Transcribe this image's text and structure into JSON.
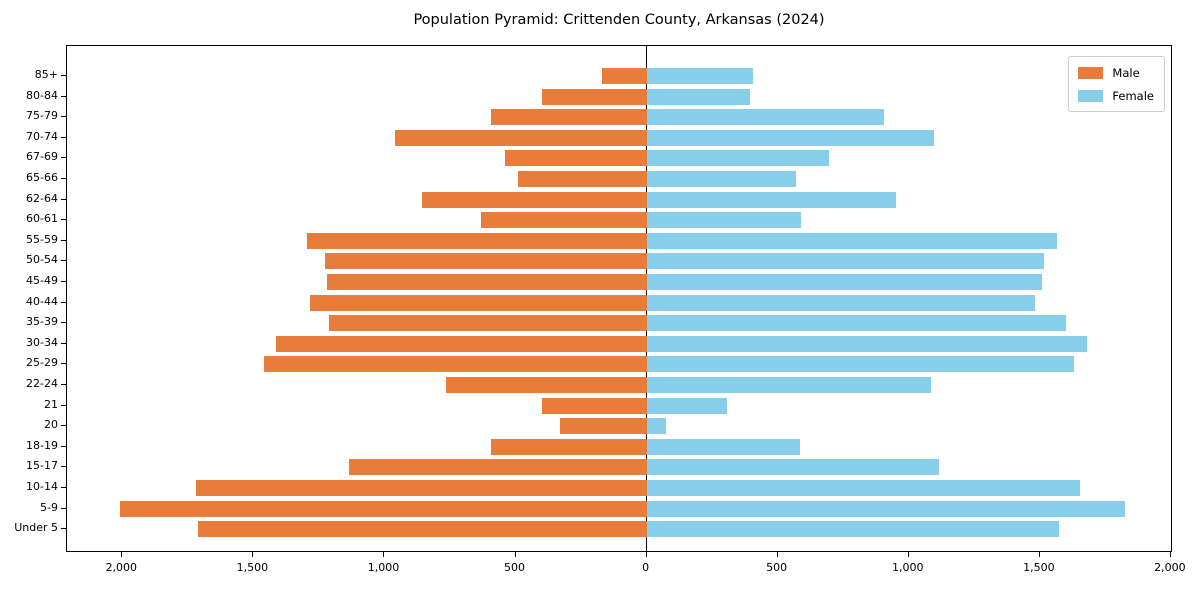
{
  "chart_data": {
    "type": "bar",
    "subtype": "population-pyramid",
    "title": "Population Pyramid: Crittenden County, Arkansas (2024)",
    "categories": [
      "85+",
      "80-84",
      "75-79",
      "70-74",
      "67-69",
      "65-66",
      "62-64",
      "60-61",
      "55-59",
      "50-54",
      "45-49",
      "40-44",
      "35-39",
      "30-34",
      "25-29",
      "22-24",
      "21",
      "20",
      "18-19",
      "15-17",
      "10-14",
      "5-9",
      "Under 5"
    ],
    "series": [
      {
        "name": "Male",
        "side": "left",
        "color": "#E87D3B",
        "values": [
          170,
          400,
          595,
          960,
          540,
          490,
          855,
          630,
          1295,
          1225,
          1220,
          1285,
          1210,
          1415,
          1460,
          765,
          400,
          330,
          595,
          1135,
          1720,
          2010,
          1710
        ]
      },
      {
        "name": "Female",
        "side": "right",
        "color": "#87CEEB",
        "values": [
          405,
          395,
          905,
          1095,
          695,
          570,
          950,
          590,
          1565,
          1515,
          1510,
          1480,
          1600,
          1680,
          1630,
          1085,
          305,
          75,
          585,
          1115,
          1655,
          1825,
          1575
        ]
      }
    ],
    "xlim": [
      -2211,
      2008
    ],
    "x_tick_values": [
      -2000,
      -1500,
      -1000,
      -500,
      0,
      500,
      1000,
      1500,
      2000
    ],
    "x_tick_labels": [
      "2,000",
      "1,500",
      "1,000",
      "500",
      "0",
      "500",
      "1,000",
      "1,500",
      "2,000"
    ],
    "ylabel": "",
    "xlabel": "",
    "grid": false,
    "legend_position": "upper-right",
    "axis_color": "#000000",
    "background": "#ffffff"
  }
}
